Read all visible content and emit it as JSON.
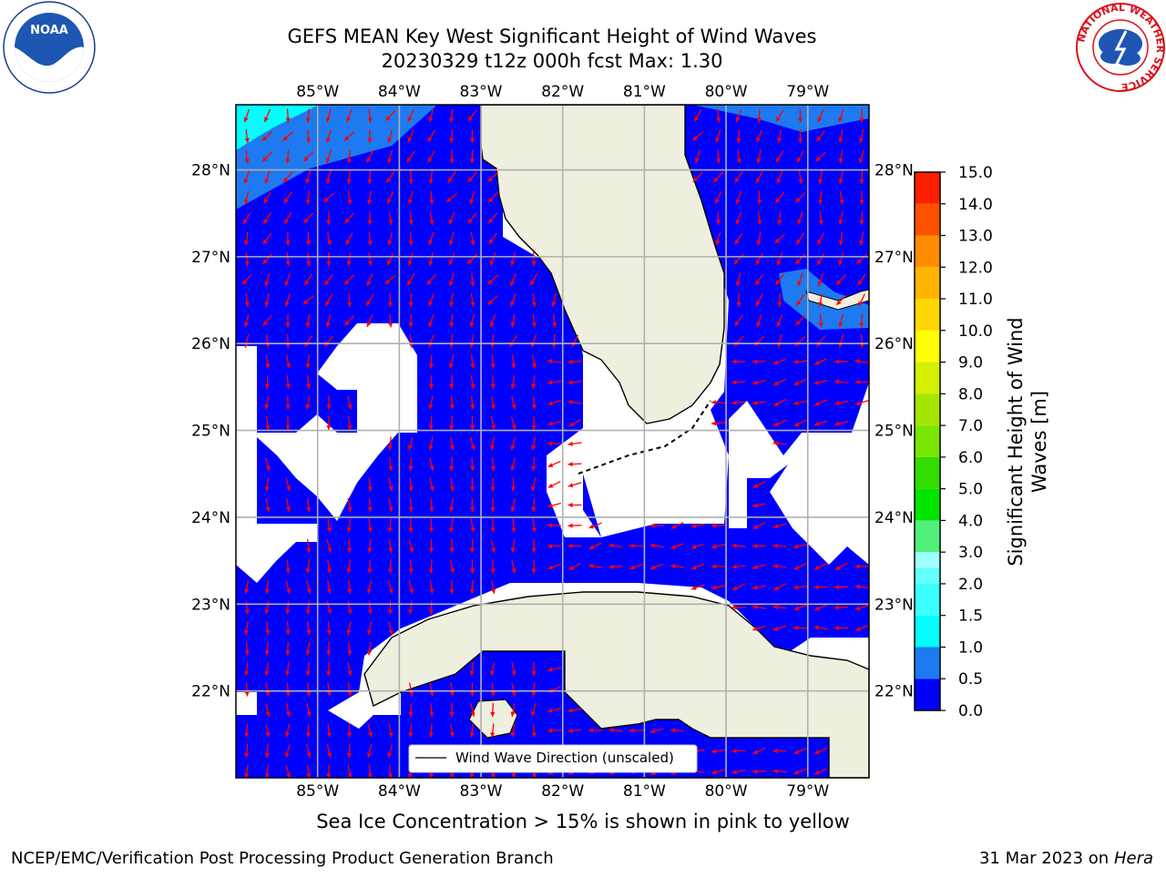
{
  "title_line1": "GEFS MEAN Key West Significant Height of Wind Waves",
  "title_line2": "20230329 t12z 000h fcst   Max: 1.30",
  "lon_labels": [
    "85°W",
    "84°W",
    "83°W",
    "82°W",
    "81°W",
    "80°W",
    "79°W"
  ],
  "lat_labels": [
    "28°N",
    "27°N",
    "26°N",
    "25°N",
    "24°N",
    "23°N",
    "22°N"
  ],
  "legend_label": "Wind Wave Direction (unscaled)",
  "colorbar": {
    "label": "Significant Height of Wind Waves [m]",
    "tick_labels": [
      "0.0",
      "0.5",
      "1.0",
      "1.5",
      "2.0",
      "3.0",
      "4.0",
      "5.0",
      "6.0",
      "7.0",
      "8.0",
      "9.0",
      "10.0",
      "11.0",
      "12.0",
      "13.0",
      "14.0",
      "15.0"
    ],
    "colors": [
      "#0000ff",
      "#1e7af0",
      "#00ffff",
      "#3cffff",
      "#64ffff",
      "#a0ffff",
      "#50f07a",
      "#00e600",
      "#32dc00",
      "#78e600",
      "#a5e600",
      "#d2f000",
      "#ffff00",
      "#ffd700",
      "#ffb400",
      "#ff8c00",
      "#ff5000",
      "#ff1e00",
      "#ff0000"
    ]
  },
  "footnote": "Sea Ice Concentration > 15% is shown in pink to yellow",
  "credit_left": "NCEP/EMC/Verification Post Processing Product Generation Branch",
  "credit_date": "31 Mar 2023 on",
  "credit_machine": "Hera",
  "logos": {
    "left": "noaa-logo",
    "right": "nws-logo"
  },
  "noaa_text": "NOAA",
  "nws_ring_text": "NATIONAL WEATHER SERVICE",
  "map": {
    "lon_range": [
      -86.0,
      -78.25
    ],
    "lat_range": [
      21.0,
      28.75
    ],
    "land_color": "#efefdf",
    "water_min_color": "#0000ff",
    "arrow_color": "#ff0000",
    "grid_color": "#b0b0b0",
    "max_value": 1.3
  }
}
